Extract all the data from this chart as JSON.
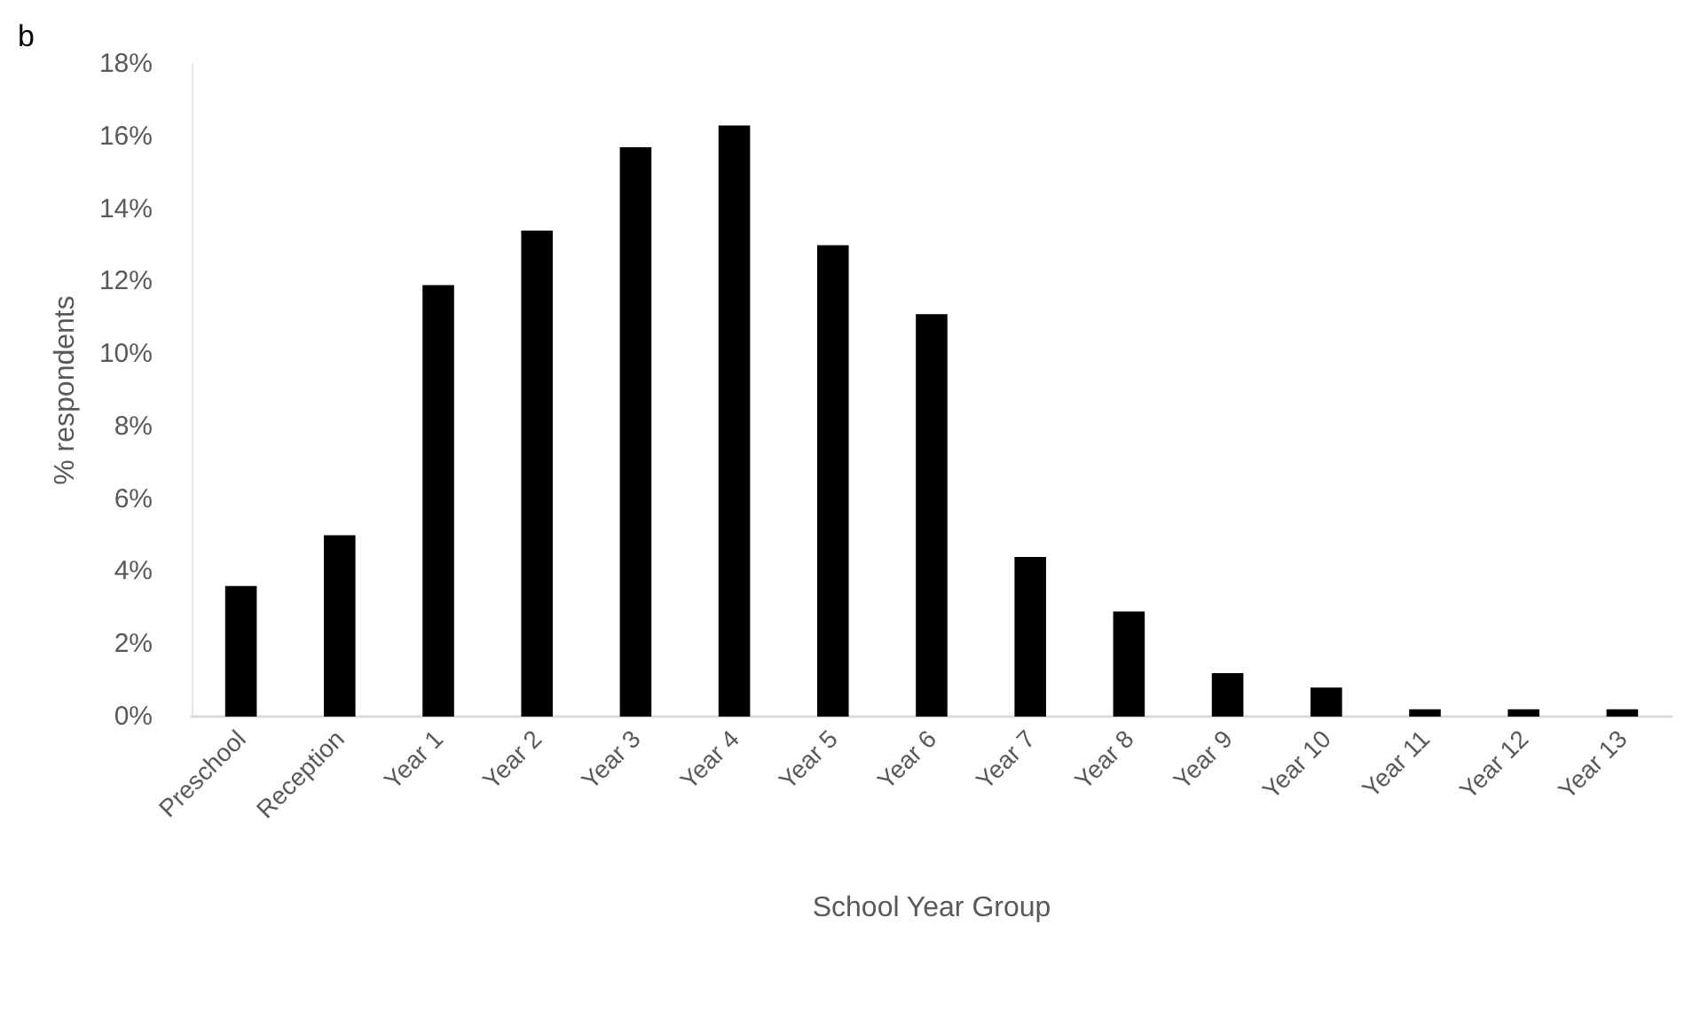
{
  "chart_data": {
    "type": "bar",
    "xlabel": "School Year Group",
    "ylabel": "% respondents",
    "annotations": [
      "b"
    ],
    "categories": [
      "Preschool",
      "Reception",
      "Year 1",
      "Year 2",
      "Year 3",
      "Year 4",
      "Year 5",
      "Year 6",
      "Year 7",
      "Year 8",
      "Year 9",
      "Year 10",
      "Year 11",
      "Year 12",
      "Year 13"
    ],
    "values": [
      3.6,
      5.0,
      11.9,
      13.4,
      15.7,
      16.3,
      13.0,
      11.1,
      4.4,
      2.9,
      1.2,
      0.8,
      0.2,
      0.2,
      0.2
    ],
    "color": "#000000",
    "ylim": [
      0,
      18
    ],
    "yticks": [
      {
        "value": 0,
        "label": "0%"
      },
      {
        "value": 2,
        "label": "2%"
      },
      {
        "value": 4,
        "label": "4%"
      },
      {
        "value": 6,
        "label": "6%"
      },
      {
        "value": 8,
        "label": "8%"
      },
      {
        "value": 10,
        "label": "10%"
      },
      {
        "value": 12,
        "label": "12%"
      },
      {
        "value": 14,
        "label": "14%"
      },
      {
        "value": 16,
        "label": "16%"
      },
      {
        "value": 18,
        "label": "18%"
      }
    ],
    "grid": false
  }
}
